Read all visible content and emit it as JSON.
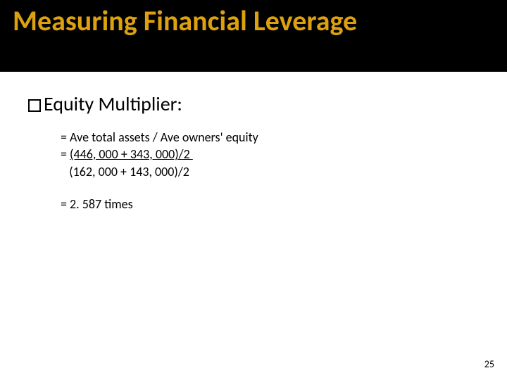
{
  "title": "Measuring Financial Leverage",
  "bullet": {
    "label": "Equity Multiplier:"
  },
  "calc": {
    "formula": "= Ave total assets / Ave owners' equity",
    "num_prefix": "= ",
    "numerator": "(446, 000 + 343, 000)/2 ",
    "den_indent": "   ",
    "denominator": "(162, 000 + 143, 000)/2",
    "result": "= 2. 587 times"
  },
  "page_number": "25",
  "colors": {
    "title_bg": "#000000",
    "title_text": "#dca10d",
    "body_bg": "#ffffff",
    "body_text": "#000000"
  }
}
